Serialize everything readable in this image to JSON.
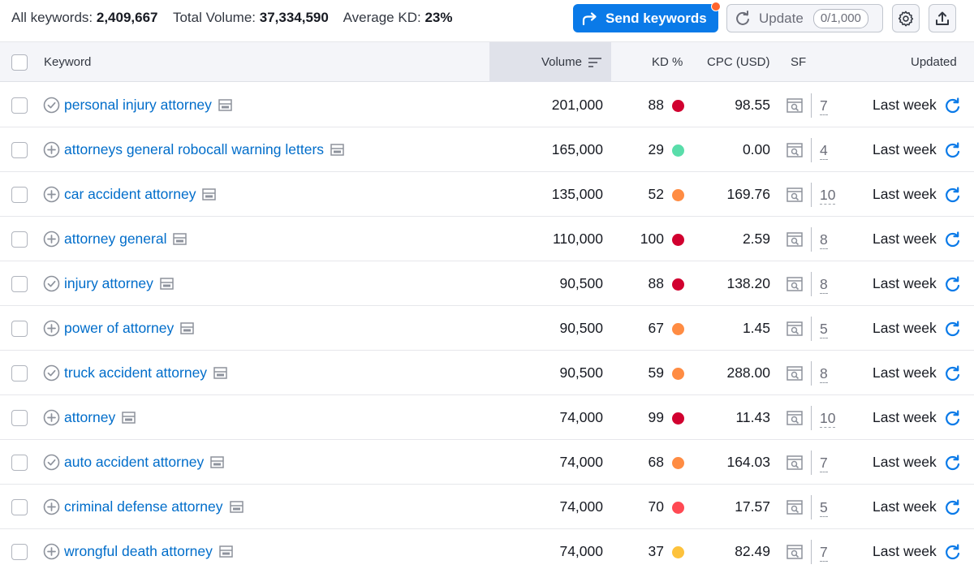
{
  "summary": {
    "all_keywords_label": "All keywords:",
    "all_keywords_value": "2,409,667",
    "total_volume_label": "Total Volume:",
    "total_volume_value": "37,334,590",
    "avg_kd_label": "Average KD:",
    "avg_kd_value": "23%"
  },
  "toolbar": {
    "send_label": "Send keywords",
    "update_label": "Update",
    "update_count": "0/1,000"
  },
  "columns": {
    "keyword": "Keyword",
    "volume": "Volume",
    "kd": "KD %",
    "cpc": "CPC (USD)",
    "sf": "SF",
    "updated": "Updated"
  },
  "colors": {
    "accent": "#0a7ae8",
    "link": "#006dca",
    "kd_very_hard": "#d1002f",
    "kd_hard": "#ff4953",
    "kd_difficult": "#ff8c43",
    "kd_possible": "#fdc23c",
    "kd_easy": "#59ddaa"
  },
  "rows": [
    {
      "keyword": "personal injury attorney",
      "added": true,
      "volume": "201,000",
      "kd": "88",
      "kd_color": "#d1002f",
      "cpc": "98.55",
      "sf": "7",
      "updated": "Last week"
    },
    {
      "keyword": "attorneys general robocall warning letters",
      "added": false,
      "volume": "165,000",
      "kd": "29",
      "kd_color": "#59ddaa",
      "cpc": "0.00",
      "sf": "4",
      "updated": "Last week"
    },
    {
      "keyword": "car accident attorney",
      "added": false,
      "volume": "135,000",
      "kd": "52",
      "kd_color": "#ff8c43",
      "cpc": "169.76",
      "sf": "10",
      "updated": "Last week"
    },
    {
      "keyword": "attorney general",
      "added": false,
      "volume": "110,000",
      "kd": "100",
      "kd_color": "#d1002f",
      "cpc": "2.59",
      "sf": "8",
      "updated": "Last week"
    },
    {
      "keyword": "injury attorney",
      "added": true,
      "volume": "90,500",
      "kd": "88",
      "kd_color": "#d1002f",
      "cpc": "138.20",
      "sf": "8",
      "updated": "Last week"
    },
    {
      "keyword": "power of attorney",
      "added": false,
      "volume": "90,500",
      "kd": "67",
      "kd_color": "#ff8c43",
      "cpc": "1.45",
      "sf": "5",
      "updated": "Last week"
    },
    {
      "keyword": "truck accident attorney",
      "added": true,
      "volume": "90,500",
      "kd": "59",
      "kd_color": "#ff8c43",
      "cpc": "288.00",
      "sf": "8",
      "updated": "Last week"
    },
    {
      "keyword": "attorney",
      "added": false,
      "volume": "74,000",
      "kd": "99",
      "kd_color": "#d1002f",
      "cpc": "11.43",
      "sf": "10",
      "updated": "Last week"
    },
    {
      "keyword": "auto accident attorney",
      "added": true,
      "volume": "74,000",
      "kd": "68",
      "kd_color": "#ff8c43",
      "cpc": "164.03",
      "sf": "7",
      "updated": "Last week"
    },
    {
      "keyword": "criminal defense attorney",
      "added": false,
      "volume": "74,000",
      "kd": "70",
      "kd_color": "#ff4953",
      "cpc": "17.57",
      "sf": "5",
      "updated": "Last week"
    },
    {
      "keyword": "wrongful death attorney",
      "added": false,
      "volume": "74,000",
      "kd": "37",
      "kd_color": "#fdc23c",
      "cpc": "82.49",
      "sf": "7",
      "updated": "Last week"
    }
  ]
}
